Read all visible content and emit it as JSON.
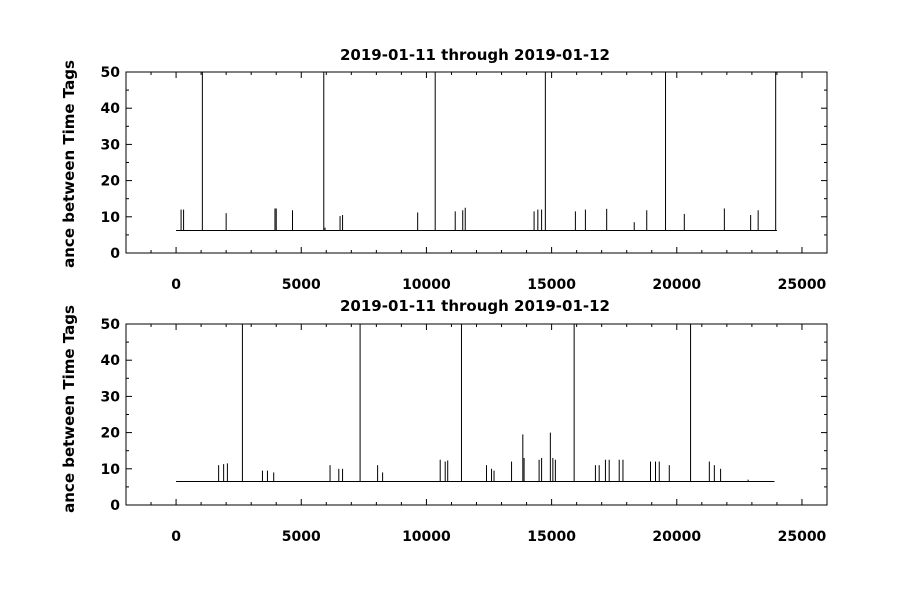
{
  "chart_data": [
    {
      "type": "line",
      "title": "2019-01-11 through 2019-01-12",
      "ylabel": "ance between Time Tags",
      "xlim": [
        -2000,
        26000
      ],
      "ylim": [
        0,
        50
      ],
      "xticks": [
        0,
        5000,
        10000,
        15000,
        20000,
        25000
      ],
      "yticks": [
        0,
        10,
        20,
        30,
        40,
        50
      ],
      "x_range": [
        0,
        24000
      ],
      "baseline": 6.2,
      "spikes": [
        {
          "x": 200,
          "y": 12
        },
        {
          "x": 300,
          "y": 12
        },
        {
          "x": 1050,
          "y": 50
        },
        {
          "x": 2000,
          "y": 11
        },
        {
          "x": 3950,
          "y": 12.3
        },
        {
          "x": 4000,
          "y": 12.3
        },
        {
          "x": 4650,
          "y": 11.8
        },
        {
          "x": 5900,
          "y": 50
        },
        {
          "x": 5950,
          "y": 7
        },
        {
          "x": 6550,
          "y": 10.2
        },
        {
          "x": 6650,
          "y": 10.5
        },
        {
          "x": 9650,
          "y": 11.2
        },
        {
          "x": 10350,
          "y": 50
        },
        {
          "x": 11150,
          "y": 11.5
        },
        {
          "x": 11450,
          "y": 11.8
        },
        {
          "x": 11550,
          "y": 12.5
        },
        {
          "x": 14300,
          "y": 11.5
        },
        {
          "x": 14450,
          "y": 12
        },
        {
          "x": 14600,
          "y": 12
        },
        {
          "x": 14750,
          "y": 50
        },
        {
          "x": 15950,
          "y": 11.5
        },
        {
          "x": 16350,
          "y": 12
        },
        {
          "x": 17200,
          "y": 12.2
        },
        {
          "x": 18300,
          "y": 8.5
        },
        {
          "x": 18800,
          "y": 11.8
        },
        {
          "x": 19550,
          "y": 50
        },
        {
          "x": 20300,
          "y": 10.8
        },
        {
          "x": 21900,
          "y": 12.3
        },
        {
          "x": 22950,
          "y": 10.5
        },
        {
          "x": 23250,
          "y": 11.8
        },
        {
          "x": 23950,
          "y": 50
        }
      ]
    },
    {
      "type": "line",
      "title": "2019-01-11 through 2019-01-12",
      "ylabel": "ance between Time Tags",
      "xlim": [
        -2000,
        26000
      ],
      "ylim": [
        0,
        50
      ],
      "xticks": [
        0,
        5000,
        10000,
        15000,
        20000,
        25000
      ],
      "yticks": [
        0,
        10,
        20,
        30,
        40,
        50
      ],
      "x_range": [
        0,
        23900
      ],
      "baseline": 6.5,
      "spikes": [
        {
          "x": 1700,
          "y": 11
        },
        {
          "x": 1900,
          "y": 11.3
        },
        {
          "x": 2050,
          "y": 11.5
        },
        {
          "x": 2650,
          "y": 50
        },
        {
          "x": 3450,
          "y": 9.5
        },
        {
          "x": 3650,
          "y": 9.5
        },
        {
          "x": 3900,
          "y": 9
        },
        {
          "x": 6150,
          "y": 11
        },
        {
          "x": 6500,
          "y": 10
        },
        {
          "x": 6650,
          "y": 10
        },
        {
          "x": 7350,
          "y": 50
        },
        {
          "x": 8050,
          "y": 11
        },
        {
          "x": 8250,
          "y": 9
        },
        {
          "x": 10550,
          "y": 12.5
        },
        {
          "x": 10750,
          "y": 12
        },
        {
          "x": 10850,
          "y": 12.3
        },
        {
          "x": 11400,
          "y": 50
        },
        {
          "x": 12400,
          "y": 11
        },
        {
          "x": 12600,
          "y": 10
        },
        {
          "x": 12700,
          "y": 9.5
        },
        {
          "x": 13400,
          "y": 12
        },
        {
          "x": 13850,
          "y": 19.5
        },
        {
          "x": 13900,
          "y": 13
        },
        {
          "x": 14500,
          "y": 12.5
        },
        {
          "x": 14600,
          "y": 13
        },
        {
          "x": 14950,
          "y": 20
        },
        {
          "x": 15050,
          "y": 13
        },
        {
          "x": 15150,
          "y": 12.5
        },
        {
          "x": 15900,
          "y": 50
        },
        {
          "x": 16750,
          "y": 11
        },
        {
          "x": 16900,
          "y": 11
        },
        {
          "x": 17150,
          "y": 12.5
        },
        {
          "x": 17300,
          "y": 12.5
        },
        {
          "x": 17700,
          "y": 12.5
        },
        {
          "x": 17850,
          "y": 12.5
        },
        {
          "x": 18950,
          "y": 12
        },
        {
          "x": 19150,
          "y": 12
        },
        {
          "x": 19300,
          "y": 12
        },
        {
          "x": 19700,
          "y": 11
        },
        {
          "x": 20550,
          "y": 50
        },
        {
          "x": 21300,
          "y": 12
        },
        {
          "x": 21500,
          "y": 11
        },
        {
          "x": 21750,
          "y": 10
        },
        {
          "x": 22850,
          "y": 7
        }
      ]
    }
  ]
}
